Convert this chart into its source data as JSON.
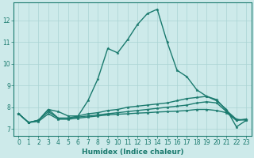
{
  "xlabel": "Humidex (Indice chaleur)",
  "background_color": "#cdeaea",
  "line_color": "#1a7a6e",
  "grid_color": "#aad4d4",
  "xlim": [
    -0.5,
    23.5
  ],
  "ylim": [
    6.7,
    12.8
  ],
  "yticks": [
    7,
    8,
    9,
    10,
    11,
    12
  ],
  "xticks": [
    0,
    1,
    2,
    3,
    4,
    5,
    6,
    7,
    8,
    9,
    10,
    11,
    12,
    13,
    14,
    15,
    16,
    17,
    18,
    19,
    20,
    21,
    22,
    23
  ],
  "series": [
    {
      "x": [
        0,
        1,
        2,
        3,
        4,
        5,
        6,
        7,
        8,
        9,
        10,
        11,
        12,
        13,
        14,
        15,
        16,
        17,
        18,
        19,
        20,
        21,
        22,
        23
      ],
      "y": [
        7.7,
        7.3,
        7.4,
        7.9,
        7.5,
        7.5,
        7.6,
        8.3,
        9.3,
        10.7,
        10.5,
        11.1,
        11.8,
        12.3,
        12.5,
        11.0,
        9.7,
        9.4,
        8.8,
        8.5,
        8.3,
        7.9,
        7.1,
        7.4
      ]
    },
    {
      "x": [
        0,
        1,
        2,
        3,
        4,
        5,
        6,
        7,
        8,
        9,
        10,
        11,
        12,
        13,
        14,
        15,
        16,
        17,
        18,
        19,
        20,
        21,
        22,
        23
      ],
      "y": [
        7.7,
        7.3,
        7.4,
        7.9,
        7.8,
        7.6,
        7.6,
        7.7,
        7.75,
        7.85,
        7.9,
        8.0,
        8.05,
        8.1,
        8.15,
        8.2,
        8.3,
        8.4,
        8.45,
        8.5,
        8.35,
        7.85,
        7.45,
        7.4
      ]
    },
    {
      "x": [
        0,
        1,
        2,
        3,
        4,
        5,
        6,
        7,
        8,
        9,
        10,
        11,
        12,
        13,
        14,
        15,
        16,
        17,
        18,
        19,
        20,
        21,
        22,
        23
      ],
      "y": [
        7.7,
        7.3,
        7.4,
        7.8,
        7.5,
        7.5,
        7.55,
        7.6,
        7.65,
        7.7,
        7.75,
        7.8,
        7.85,
        7.9,
        7.95,
        8.0,
        8.05,
        8.1,
        8.2,
        8.25,
        8.2,
        7.8,
        7.4,
        7.45
      ]
    },
    {
      "x": [
        0,
        1,
        2,
        3,
        4,
        5,
        6,
        7,
        8,
        9,
        10,
        11,
        12,
        13,
        14,
        15,
        16,
        17,
        18,
        19,
        20,
        21,
        22,
        23
      ],
      "y": [
        7.7,
        7.3,
        7.35,
        7.7,
        7.45,
        7.45,
        7.5,
        7.55,
        7.6,
        7.65,
        7.68,
        7.7,
        7.73,
        7.75,
        7.78,
        7.8,
        7.82,
        7.85,
        7.9,
        7.9,
        7.85,
        7.75,
        7.4,
        7.45
      ]
    }
  ]
}
